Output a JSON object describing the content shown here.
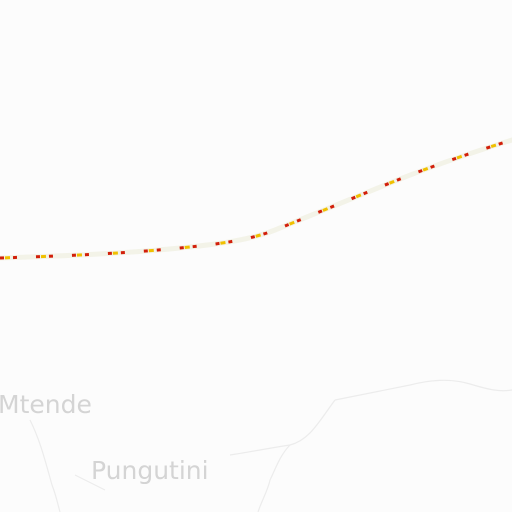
{
  "map": {
    "background_color": "#fcfcfc",
    "places": {
      "mtende": "Mtende",
      "pungutini": "Pungutini"
    },
    "features": {
      "route": {
        "type": "dashed-line",
        "casing_color": "#f3f3e8",
        "dash_color": "#d21f0a",
        "dash_accent_color": "#f0c000"
      },
      "boundaries": {
        "type": "thin-line",
        "color": "#ececec"
      }
    }
  }
}
